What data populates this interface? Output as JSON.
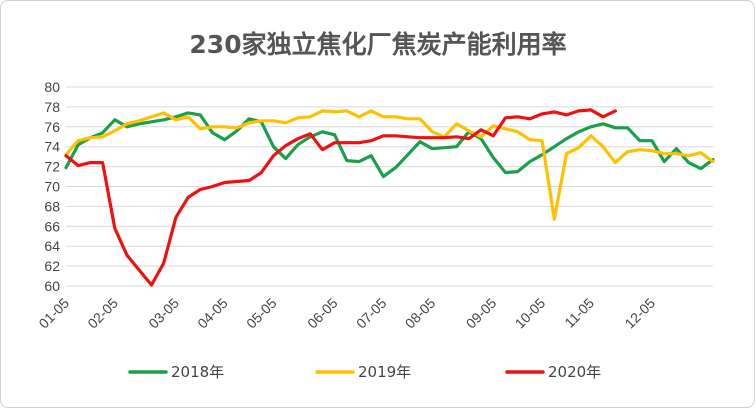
{
  "chart_data": {
    "type": "line",
    "title": "230家独立焦化厂焦炭产能利用率",
    "xlabel": "",
    "ylabel": "",
    "ylim": [
      60,
      80
    ],
    "yticks": [
      60,
      62,
      64,
      66,
      68,
      70,
      72,
      74,
      76,
      78,
      80
    ],
    "x_ticks": [
      "01-05",
      "02-05",
      "03-05",
      "04-05",
      "05-05",
      "06-05",
      "07-05",
      "08-05",
      "09-05",
      "10-05",
      "11-05",
      "12-05"
    ],
    "grid": true,
    "legend_position": "bottom",
    "series": [
      {
        "name": "2018年",
        "color": "#1aa049",
        "values": [
          71.9,
          74.2,
          74.9,
          75.4,
          76.7,
          76.0,
          76.3,
          76.5,
          76.7,
          77.0,
          77.4,
          77.2,
          75.4,
          74.7,
          75.6,
          76.8,
          76.5,
          74.0,
          72.8,
          74.2,
          75.0,
          75.5,
          75.2,
          72.6,
          72.5,
          73.1,
          71.0,
          71.9,
          73.2,
          74.5,
          73.8,
          73.9,
          74.0,
          75.5,
          74.8,
          72.9,
          71.4,
          71.5,
          72.5,
          73.2,
          74.0,
          74.8,
          75.5,
          76.0,
          76.3,
          75.9,
          75.9,
          74.6,
          74.6,
          72.5,
          73.8,
          72.4,
          71.8,
          72.7
        ]
      },
      {
        "name": "2019年",
        "color": "#ffc000",
        "values": [
          73.2,
          74.6,
          74.9,
          75.0,
          75.6,
          76.3,
          76.6,
          77.0,
          77.4,
          76.7,
          77.0,
          75.8,
          76.0,
          76.0,
          75.9,
          76.4,
          76.6,
          76.6,
          76.4,
          76.9,
          77.0,
          77.6,
          77.5,
          77.6,
          77.0,
          77.6,
          77.0,
          77.0,
          76.8,
          76.8,
          75.5,
          75.0,
          76.3,
          75.6,
          75.0,
          76.1,
          75.8,
          75.5,
          74.7,
          74.6,
          66.7,
          73.3,
          73.9,
          75.1,
          74.0,
          72.4,
          73.5,
          73.7,
          73.6,
          73.3,
          73.3,
          73.1,
          73.4,
          72.5
        ]
      },
      {
        "name": "2020年",
        "color": "#ee1111",
        "values": [
          73.1,
          72.1,
          72.4,
          72.4,
          65.8,
          63.1,
          61.6,
          60.1,
          62.3,
          66.9,
          68.9,
          69.7,
          70.0,
          70.4,
          70.5,
          70.6,
          71.4,
          73.1,
          74.1,
          74.8,
          75.3,
          73.7,
          74.4,
          74.4,
          74.4,
          74.6,
          75.1,
          75.1,
          75.0,
          74.9,
          74.9,
          74.9,
          75.0,
          74.8,
          75.7,
          75.1,
          76.9,
          77.0,
          76.8,
          77.3,
          77.5,
          77.2,
          77.6,
          77.7,
          77.0,
          77.6
        ]
      }
    ]
  }
}
